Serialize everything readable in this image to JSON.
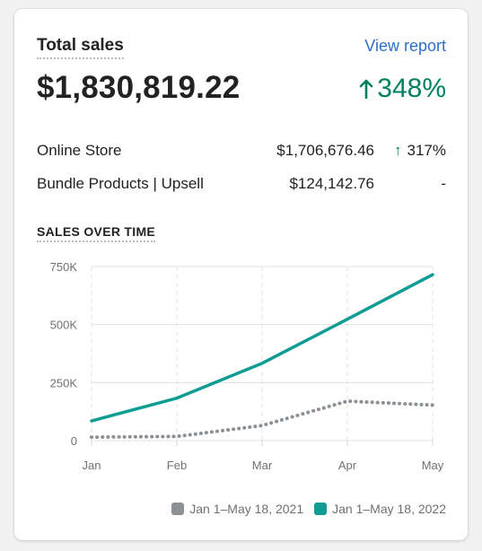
{
  "card": {
    "title": "Total sales",
    "view_report": "View report",
    "total": "$1,830,819.22",
    "growth_arrow": "↑",
    "growth": "348%"
  },
  "breakdown": [
    {
      "label": "Online Store",
      "amount": "$1,706,676.46",
      "arrow": "↑",
      "change": "317%"
    },
    {
      "label": "Bundle Products | Upsell",
      "amount": "$124,142.76",
      "arrow": "",
      "change": "-"
    }
  ],
  "colors": {
    "positive": "#008060",
    "link": "#2c6ecb",
    "series_current": "#0f9c93",
    "series_previous": "#8c9196"
  },
  "chart_section_title": "SALES OVER TIME",
  "chart_data": {
    "type": "line",
    "categories": [
      "Jan",
      "Feb",
      "Mar",
      "Apr",
      "May"
    ],
    "y_ticks": [
      "750K",
      "500K",
      "250K",
      "0"
    ],
    "ylim": [
      0,
      750000
    ],
    "grid": true,
    "legend_placement": "bottom-right",
    "series": [
      {
        "name": "Jan 1–May 18, 2021",
        "style": "dotted",
        "color": "#8c9196",
        "values": [
          15000,
          18000,
          65000,
          170000,
          153000
        ]
      },
      {
        "name": "Jan 1–May 18, 2022",
        "style": "solid",
        "color": "#0f9c93",
        "values": [
          85000,
          183000,
          333000,
          523000,
          715000
        ]
      }
    ]
  }
}
